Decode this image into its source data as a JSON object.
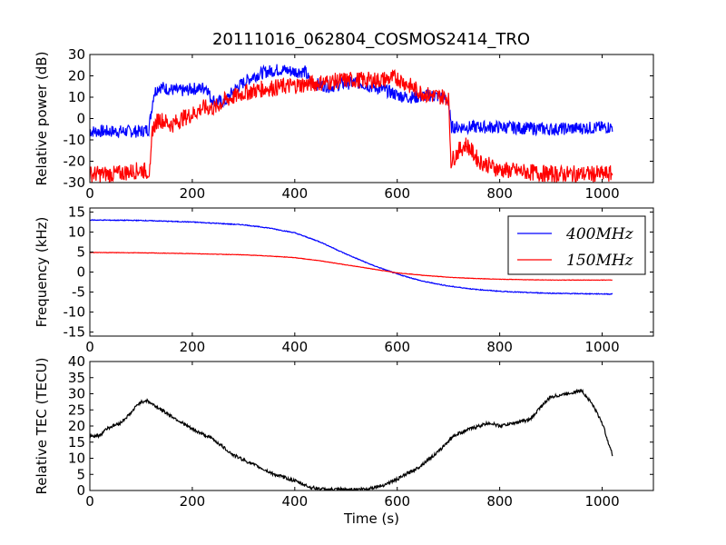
{
  "title": "20111016_062804_COSMOS2414_TRO",
  "chart_data": [
    {
      "type": "line",
      "ylabel": "Relative power (dB)",
      "xlim": [
        0,
        1100
      ],
      "ylim": [
        -30,
        30
      ],
      "xticks": [
        0,
        200,
        400,
        600,
        800,
        1000
      ],
      "yticks": [
        -30,
        -20,
        -10,
        0,
        10,
        20,
        30
      ],
      "series": [
        {
          "color": "#0000ff",
          "noise": 3,
          "points": [
            [
              0,
              -6
            ],
            [
              100,
              -6
            ],
            [
              115,
              -5
            ],
            [
              125,
              12
            ],
            [
              135,
              15
            ],
            [
              150,
              14
            ],
            [
              170,
              13
            ],
            [
              185,
              13
            ],
            [
              200,
              14
            ],
            [
              215,
              14
            ],
            [
              228,
              15
            ],
            [
              235,
              10
            ],
            [
              245,
              8
            ],
            [
              265,
              8
            ],
            [
              280,
              13
            ],
            [
              295,
              16
            ],
            [
              320,
              20
            ],
            [
              345,
              22
            ],
            [
              370,
              23
            ],
            [
              400,
              22
            ],
            [
              420,
              22
            ],
            [
              430,
              17
            ],
            [
              445,
              16
            ],
            [
              470,
              15
            ],
            [
              490,
              16
            ],
            [
              520,
              17
            ],
            [
              550,
              15
            ],
            [
              580,
              13
            ],
            [
              600,
              11
            ],
            [
              620,
              10
            ],
            [
              640,
              10
            ],
            [
              660,
              11
            ],
            [
              690,
              10
            ],
            [
              700,
              8
            ],
            [
              705,
              -4
            ],
            [
              750,
              -4
            ],
            [
              800,
              -4
            ],
            [
              900,
              -5
            ],
            [
              1020,
              -4
            ]
          ]
        },
        {
          "color": "#ff0000",
          "noise": 4,
          "points": [
            [
              0,
              -26
            ],
            [
              50,
              -26
            ],
            [
              100,
              -24
            ],
            [
              118,
              -25
            ],
            [
              122,
              -5
            ],
            [
              135,
              0
            ],
            [
              160,
              -3
            ],
            [
              180,
              0
            ],
            [
              200,
              2
            ],
            [
              220,
              5
            ],
            [
              245,
              5
            ],
            [
              260,
              8
            ],
            [
              280,
              10
            ],
            [
              300,
              12
            ],
            [
              340,
              14
            ],
            [
              380,
              15
            ],
            [
              420,
              16
            ],
            [
              460,
              17
            ],
            [
              500,
              18
            ],
            [
              560,
              18
            ],
            [
              600,
              19
            ],
            [
              620,
              16
            ],
            [
              640,
              13
            ],
            [
              660,
              11
            ],
            [
              700,
              10
            ],
            [
              705,
              -20
            ],
            [
              720,
              -15
            ],
            [
              735,
              -12
            ],
            [
              760,
              -20
            ],
            [
              800,
              -24
            ],
            [
              850,
              -25
            ],
            [
              900,
              -26
            ],
            [
              960,
              -26
            ],
            [
              1020,
              -26
            ]
          ]
        }
      ]
    },
    {
      "type": "line",
      "ylabel": "Frequency (kHz)",
      "xlim": [
        0,
        1100
      ],
      "ylim": [
        -16,
        16
      ],
      "xticks": [
        0,
        200,
        400,
        600,
        800,
        1000
      ],
      "yticks": [
        -15,
        -10,
        -5,
        0,
        5,
        10,
        15
      ],
      "legend": "upper-right",
      "series": [
        {
          "name": "400MHz",
          "color": "#0000ff",
          "noise": 0.1,
          "points": [
            [
              0,
              13.0
            ],
            [
              100,
              12.9
            ],
            [
              200,
              12.5
            ],
            [
              300,
              11.8
            ],
            [
              350,
              11.0
            ],
            [
              400,
              9.8
            ],
            [
              450,
              7.5
            ],
            [
              500,
              4.5
            ],
            [
              550,
              1.8
            ],
            [
              600,
              -0.5
            ],
            [
              650,
              -2.3
            ],
            [
              700,
              -3.5
            ],
            [
              750,
              -4.3
            ],
            [
              800,
              -4.8
            ],
            [
              850,
              -5.1
            ],
            [
              900,
              -5.3
            ],
            [
              950,
              -5.4
            ],
            [
              1020,
              -5.5
            ]
          ]
        },
        {
          "name": "150MHz",
          "color": "#ff0000",
          "noise": 0.05,
          "points": [
            [
              0,
              4.9
            ],
            [
              100,
              4.8
            ],
            [
              200,
              4.6
            ],
            [
              300,
              4.3
            ],
            [
              350,
              4.0
            ],
            [
              400,
              3.6
            ],
            [
              450,
              2.8
            ],
            [
              500,
              1.8
            ],
            [
              550,
              0.8
            ],
            [
              600,
              -0.2
            ],
            [
              650,
              -0.8
            ],
            [
              700,
              -1.3
            ],
            [
              750,
              -1.6
            ],
            [
              800,
              -1.8
            ],
            [
              900,
              -2.0
            ],
            [
              1020,
              -2.0
            ]
          ]
        }
      ]
    },
    {
      "type": "line",
      "xlabel": "Time (s)",
      "ylabel": "Relative TEC (TECU)",
      "xlim": [
        0,
        1100
      ],
      "ylim": [
        0,
        40
      ],
      "xticks": [
        0,
        200,
        400,
        600,
        800,
        1000
      ],
      "yticks": [
        0,
        5,
        10,
        15,
        20,
        25,
        30,
        35,
        40
      ],
      "series": [
        {
          "color": "#000000",
          "noise": 0.5,
          "points": [
            [
              0,
              17
            ],
            [
              20,
              17
            ],
            [
              30,
              19
            ],
            [
              60,
              21
            ],
            [
              80,
              24
            ],
            [
              95,
              27
            ],
            [
              110,
              28
            ],
            [
              130,
              26
            ],
            [
              160,
              23
            ],
            [
              180,
              21
            ],
            [
              200,
              19
            ],
            [
              240,
              16
            ],
            [
              280,
              11
            ],
            [
              320,
              8
            ],
            [
              360,
              5
            ],
            [
              400,
              3
            ],
            [
              430,
              1
            ],
            [
              460,
              0.3
            ],
            [
              500,
              0.3
            ],
            [
              540,
              0.5
            ],
            [
              570,
              1.5
            ],
            [
              600,
              3.5
            ],
            [
              640,
              7
            ],
            [
              680,
              12
            ],
            [
              710,
              17
            ],
            [
              740,
              19
            ],
            [
              760,
              20
            ],
            [
              780,
              21
            ],
            [
              800,
              20
            ],
            [
              830,
              21
            ],
            [
              860,
              22
            ],
            [
              880,
              26
            ],
            [
              900,
              29
            ],
            [
              930,
              30
            ],
            [
              960,
              31
            ],
            [
              980,
              27
            ],
            [
              1000,
              21
            ],
            [
              1010,
              16
            ],
            [
              1020,
              11
            ]
          ]
        }
      ]
    }
  ]
}
